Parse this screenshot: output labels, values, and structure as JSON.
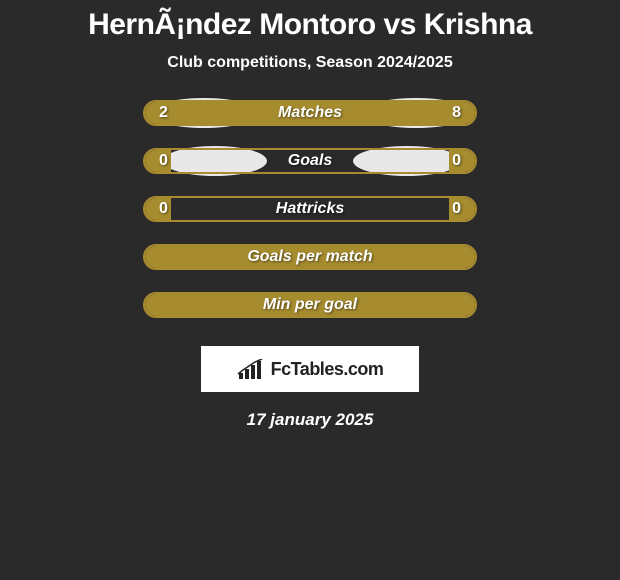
{
  "header": {
    "title": "HernÃ¡ndez Montoro vs Krishna",
    "subtitle": "Club competitions, Season 2024/2025"
  },
  "stats": [
    {
      "label": "Matches",
      "left_val": "2",
      "right_val": "8",
      "left_fill_pct": 20,
      "right_fill_pct": 80,
      "show_ellipses": true,
      "ellipse_variant": 1
    },
    {
      "label": "Goals",
      "left_val": "0",
      "right_val": "0",
      "left_fill_pct": 8,
      "right_fill_pct": 8,
      "show_ellipses": true,
      "ellipse_variant": 2
    },
    {
      "label": "Hattricks",
      "left_val": "0",
      "right_val": "0",
      "left_fill_pct": 8,
      "right_fill_pct": 8,
      "show_ellipses": false
    },
    {
      "label": "Goals per match",
      "left_val": "",
      "right_val": "",
      "fill_full": true,
      "show_ellipses": false
    },
    {
      "label": "Min per goal",
      "left_val": "",
      "right_val": "",
      "fill_full": true,
      "show_ellipses": false
    }
  ],
  "footer": {
    "logo_text": "FcTables.com",
    "date": "17 january 2025"
  },
  "colors": {
    "background": "#2a2a2a",
    "bar_color": "#a68c2f",
    "ellipse_color": "#e8e8e8",
    "text": "#ffffff"
  }
}
